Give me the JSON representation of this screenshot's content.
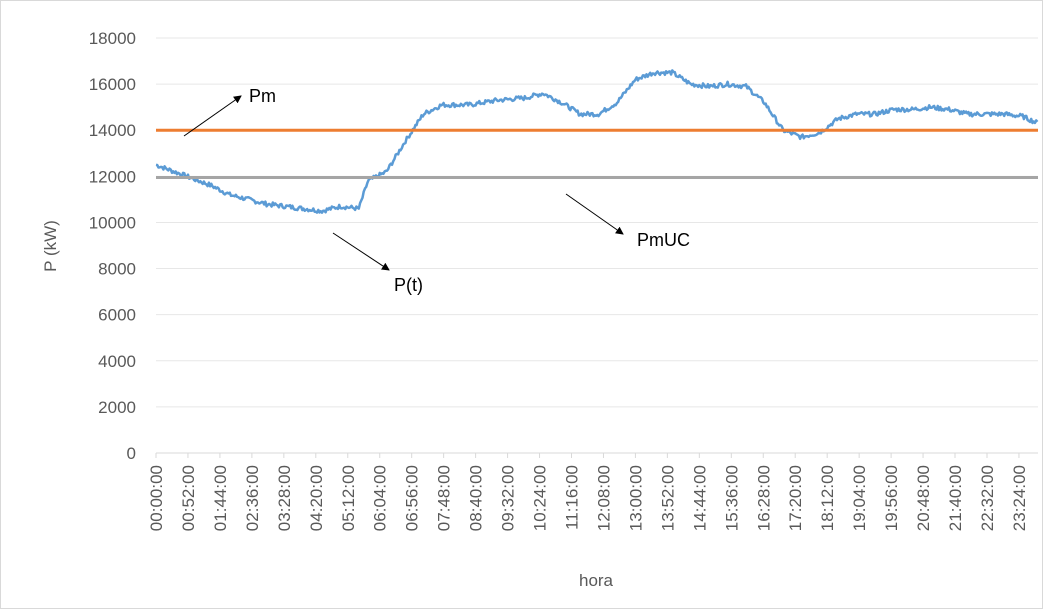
{
  "chart_data": {
    "type": "line",
    "xlabel": "hora",
    "ylabel": "P (kW)",
    "ylim": [
      0,
      18000
    ],
    "yticks": [
      0,
      2000,
      4000,
      6000,
      8000,
      10000,
      12000,
      14000,
      16000,
      18000
    ],
    "x_range_minutes": [
      0,
      1435
    ],
    "x_tick_labels": [
      "00:00:00",
      "00:52:00",
      "01:44:00",
      "02:36:00",
      "03:28:00",
      "04:20:00",
      "05:12:00",
      "06:04:00",
      "06:56:00",
      "07:48:00",
      "08:40:00",
      "09:32:00",
      "10:24:00",
      "11:16:00",
      "12:08:00",
      "13:00:00",
      "13:52:00",
      "14:44:00",
      "15:36:00",
      "16:28:00",
      "17:20:00",
      "18:12:00",
      "19:04:00",
      "19:56:00",
      "20:48:00",
      "21:40:00",
      "22:32:00",
      "23:24:00"
    ],
    "grid": "horizontal",
    "series": [
      {
        "color": "#5b9bd5",
        "x": [
          "00:00:00",
          "00:30:00",
          "01:00:00",
          "01:30:00",
          "02:00:00",
          "02:30:00",
          "03:00:00",
          "03:30:00",
          "04:00:00",
          "04:30:00",
          "05:00:00",
          "05:30:00",
          "05:45:00",
          "06:15:00",
          "06:45:00",
          "07:15:00",
          "07:45:00",
          "08:30:00",
          "09:15:00",
          "10:00:00",
          "10:30:00",
          "11:00:00",
          "11:30:00",
          "12:00:00",
          "12:30:00",
          "13:00:00",
          "13:30:00",
          "14:00:00",
          "14:30:00",
          "15:00:00",
          "15:30:00",
          "16:00:00",
          "16:30:00",
          "17:00:00",
          "17:30:00",
          "18:00:00",
          "18:30:00",
          "19:00:00",
          "19:30:00",
          "20:00:00",
          "20:30:00",
          "21:00:00",
          "21:30:00",
          "22:00:00",
          "22:30:00",
          "23:00:00",
          "23:30:00",
          "23:55:00"
        ],
        "values": [
          12500,
          12200,
          11900,
          11600,
          11200,
          11000,
          10800,
          10700,
          10600,
          10500,
          10700,
          10600,
          11800,
          12200,
          13500,
          14700,
          15100,
          15100,
          15300,
          15400,
          15600,
          15200,
          14700,
          14700,
          15200,
          16200,
          16500,
          16500,
          16000,
          15900,
          16000,
          15900,
          15200,
          14000,
          13700,
          13900,
          14500,
          14700,
          14700,
          14900,
          14900,
          15000,
          14900,
          14700,
          14700,
          14700,
          14600,
          14300
        ]
      },
      {
        "color": "#ed7d31",
        "x": [
          "00:00:00",
          "23:55:00"
        ],
        "values": [
          14000,
          14000
        ]
      },
      {
        "color": "#a5a5a5",
        "x": [
          "00:00:00",
          "23:55:00"
        ],
        "values": [
          11950,
          11950
        ]
      }
    ],
    "annotations": [
      {
        "text": "Pm"
      },
      {
        "text": "P(t)"
      },
      {
        "text": "PmUC"
      }
    ]
  }
}
